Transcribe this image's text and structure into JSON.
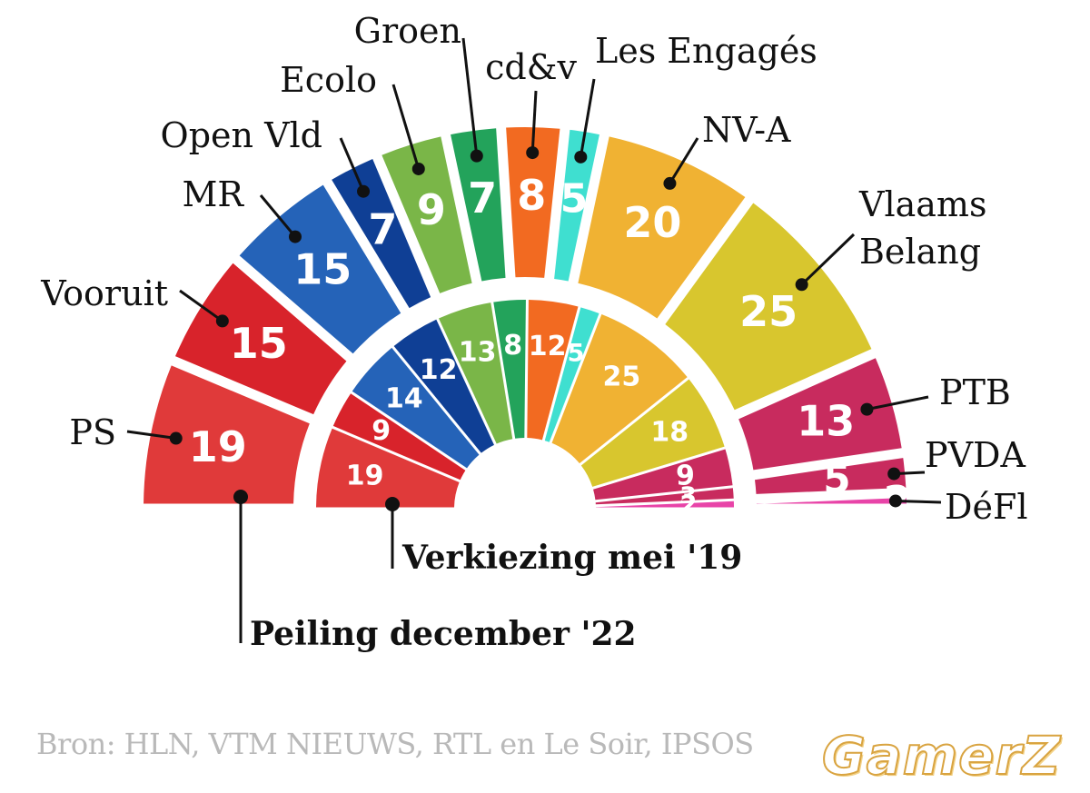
{
  "chart_data": {
    "type": "parliament-semicircle",
    "rings": [
      {
        "name": "Peiling december '22",
        "ring": "outer",
        "series": [
          {
            "party": "PS",
            "seats": 19,
            "color": "#e03a3a"
          },
          {
            "party": "Vooruit",
            "seats": 15,
            "color": "#d8232b"
          },
          {
            "party": "MR",
            "seats": 15,
            "color": "#2563b8"
          },
          {
            "party": "Open Vld",
            "seats": 7,
            "color": "#0f3f95"
          },
          {
            "party": "Ecolo",
            "seats": 9,
            "color": "#7ab648"
          },
          {
            "party": "Groen",
            "seats": 7,
            "color": "#23a35b"
          },
          {
            "party": "cd&v",
            "seats": 8,
            "color": "#f26a21"
          },
          {
            "party": "Les Engagés",
            "seats": 5,
            "color": "#3fdfd0"
          },
          {
            "party": "NV-A",
            "seats": 20,
            "color": "#f0b233"
          },
          {
            "party": "Vlaams Belang",
            "seats": 25,
            "color": "#d8c62e"
          },
          {
            "party": "PTB",
            "seats": 13,
            "color": "#c82b5e"
          },
          {
            "party": "PVDA",
            "seats": 5,
            "color": "#c82b5e"
          },
          {
            "party": "DéFI",
            "seats": 2,
            "color": "#e844a8"
          }
        ]
      },
      {
        "name": "Verkiezing mei '19",
        "ring": "inner",
        "series": [
          {
            "party": "PS",
            "seats": 19,
            "color": "#e03a3a"
          },
          {
            "party": "Vooruit",
            "seats": 9,
            "color": "#d8232b"
          },
          {
            "party": "MR",
            "seats": 14,
            "color": "#2563b8"
          },
          {
            "party": "Open Vld",
            "seats": 12,
            "color": "#0f3f95"
          },
          {
            "party": "Ecolo",
            "seats": 13,
            "color": "#7ab648"
          },
          {
            "party": "Groen",
            "seats": 8,
            "color": "#23a35b"
          },
          {
            "party": "cd&v",
            "seats": 12,
            "color": "#f26a21"
          },
          {
            "party": "Les Engagés",
            "seats": 5,
            "color": "#3fdfd0"
          },
          {
            "party": "NV-A",
            "seats": 25,
            "color": "#f0b233"
          },
          {
            "party": "Vlaams Belang",
            "seats": 18,
            "color": "#d8c62e"
          },
          {
            "party": "PTB",
            "seats": 9,
            "color": "#c82b5e"
          },
          {
            "party": "PVDA",
            "seats": 3,
            "color": "#c82b5e"
          },
          {
            "party": "DéFI",
            "seats": 2,
            "color": "#e844a8"
          }
        ]
      }
    ],
    "party_labels": [
      "PS",
      "Vooruit",
      "MR",
      "Open Vld",
      "Ecolo",
      "Groen",
      "cd&v",
      "Les Engagés",
      "NV-A",
      "Vlaams Belang",
      "PTB",
      "PVDA",
      "DéFl"
    ],
    "captions": {
      "outer": "Peiling december '22",
      "inner": "Verkiezing mei '19"
    }
  },
  "source": "Bron: HLN, VTM NIEUWS, RTL en Le Soir, IPSOS",
  "logo_text": "GamerZ"
}
